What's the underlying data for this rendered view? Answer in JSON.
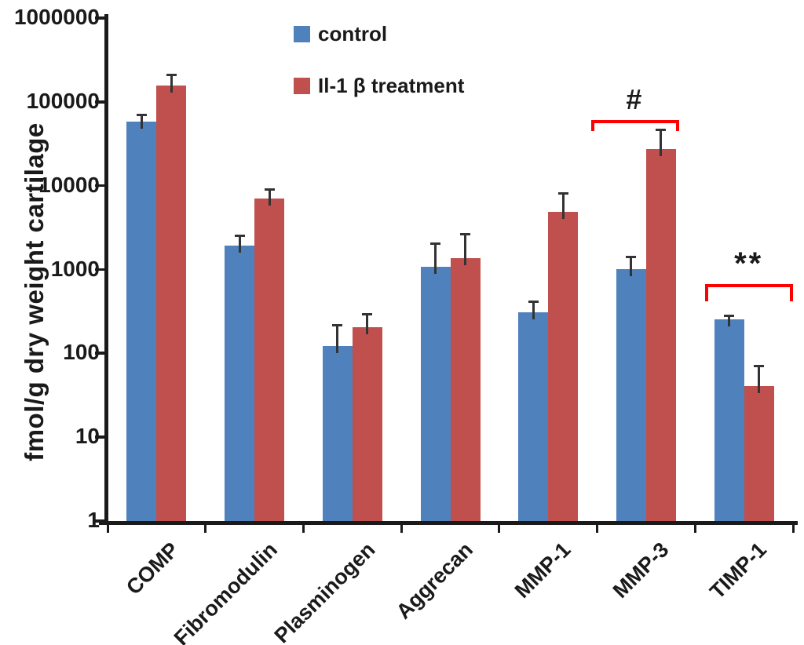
{
  "chart_data": {
    "type": "bar",
    "title": "",
    "xlabel": "",
    "ylabel": "fmol/g dry weight cartilage",
    "y_scale": "log",
    "ylim": [
      1,
      1000000
    ],
    "y_tick_labels": [
      "1",
      "10",
      "100",
      "1000",
      "10000",
      "100000",
      "1000000"
    ],
    "grid": false,
    "legend_position": "top-center",
    "categories": [
      "COMP",
      "Fibromodulin",
      "Plasminogen",
      "Aggrecan",
      "MMP-1",
      "MMP-3",
      "TIMP-1"
    ],
    "series": [
      {
        "name": "control",
        "color": "#4F81BD",
        "values": [
          57000,
          1900,
          120,
          1050,
          300,
          1000,
          250
        ],
        "error_top": [
          70000,
          2500,
          215,
          2000,
          410,
          1400,
          280
        ]
      },
      {
        "name": "Il-1 β treatment",
        "color": "#C0504D",
        "values": [
          155000,
          6900,
          200,
          1350,
          4800,
          27000,
          40
        ],
        "error_top": [
          208000,
          9000,
          290,
          2600,
          8000,
          46000,
          70
        ]
      }
    ],
    "annotations": [
      {
        "label": "#",
        "category": "MMP-3",
        "bracket_y_value": 60000,
        "bracket_color": "#FF0000",
        "text_color": "#1a1a1a"
      },
      {
        "label": "**",
        "category": "TIMP-1",
        "bracket_y_value": 660,
        "bracket_color": "#FF0000",
        "text_color": "#1a1a1a"
      }
    ],
    "colors": {
      "axis": "#1a1a1a",
      "error_bar": "#333333"
    }
  }
}
